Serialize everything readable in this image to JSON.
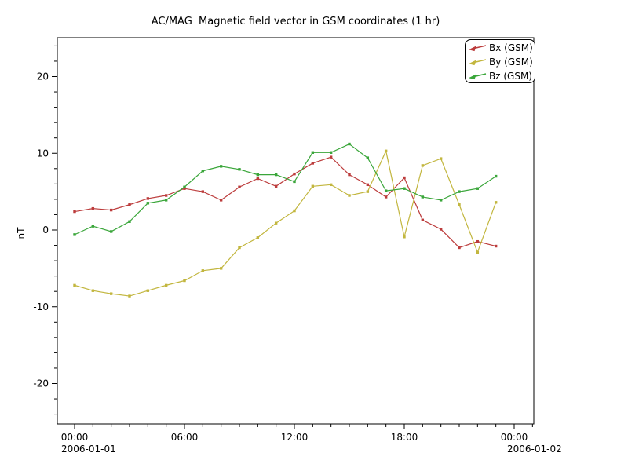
{
  "window": {
    "background": "#ffffff",
    "foreground": "#000000"
  },
  "chart_data": {
    "type": "line",
    "title": "AC/MAG  Magnetic field vector in GSM coordinates (1 hr)",
    "xlabel": "",
    "ylabel": "nT",
    "ylim": [
      -25,
      25
    ],
    "grid": false,
    "legend_position": "upper right",
    "x_hours": [
      0,
      1,
      2,
      3,
      4,
      5,
      6,
      7,
      8,
      9,
      10,
      11,
      12,
      13,
      14,
      15,
      16,
      17,
      18,
      19,
      20,
      21,
      22,
      23
    ],
    "series": [
      {
        "name": "Bx (GSM)",
        "color": "#bc3c3c",
        "values": [
          2.4,
          2.8,
          2.6,
          3.3,
          4.1,
          4.5,
          5.4,
          5.0,
          3.9,
          5.6,
          6.7,
          5.7,
          7.3,
          8.7,
          9.5,
          7.2,
          5.9,
          4.3,
          6.8,
          1.3,
          0.1,
          -2.3,
          -1.5,
          -2.1
        ]
      },
      {
        "name": "By (GSM)",
        "color": "#c2b63e",
        "values": [
          -7.2,
          -7.9,
          -8.3,
          -8.6,
          -7.9,
          -7.2,
          -6.6,
          -5.3,
          -5.0,
          -2.3,
          -1.0,
          0.9,
          2.5,
          5.7,
          5.9,
          4.5,
          5.0,
          10.3,
          -0.9,
          8.4,
          9.3,
          3.3,
          -2.9,
          3.6
        ]
      },
      {
        "name": "Bz (GSM)",
        "color": "#3aa63a",
        "values": [
          -0.6,
          0.5,
          -0.2,
          1.1,
          3.5,
          3.9,
          5.6,
          7.7,
          8.3,
          7.9,
          7.2,
          7.2,
          6.3,
          10.1,
          10.1,
          11.2,
          9.4,
          5.1,
          5.4,
          4.3,
          3.9,
          5.0,
          5.4,
          7.0
        ]
      }
    ],
    "x_axis": {
      "major_ticks": [
        {
          "hour": 0,
          "label": "00:00"
        },
        {
          "hour": 6,
          "label": "06:00"
        },
        {
          "hour": 12,
          "label": "12:00"
        },
        {
          "hour": 18,
          "label": "18:00"
        },
        {
          "hour": 24,
          "label": "00:00"
        }
      ],
      "minor_step_hours": 1,
      "date_start_label": "2006-01-01",
      "date_end_label": "2006-01-02"
    },
    "y_axis": {
      "label": "nT",
      "major_ticks": [
        20,
        10,
        0,
        -10,
        -20
      ],
      "minor_step": 2
    },
    "legend": {
      "entries": [
        {
          "label": "Bx (GSM)",
          "color": "#bc3c3c"
        },
        {
          "label": "By (GSM)",
          "color": "#c2b63e"
        },
        {
          "label": "Bz (GSM)",
          "color": "#3aa63a"
        }
      ]
    }
  }
}
